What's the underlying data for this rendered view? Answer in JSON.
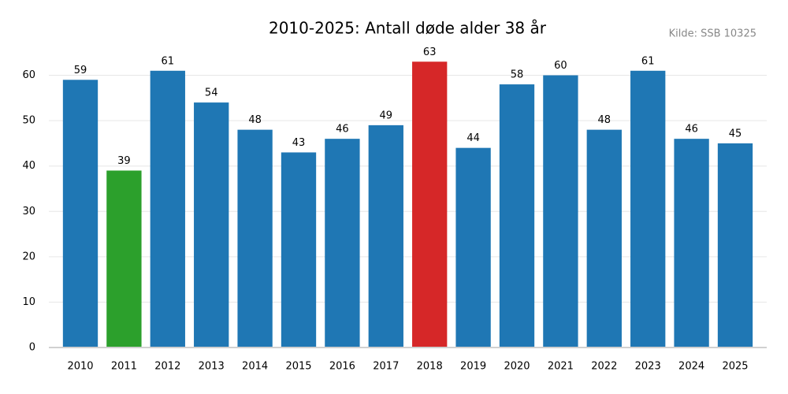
{
  "chart_data": {
    "type": "bar",
    "title": "2010-2025: Antall døde alder 38 år",
    "source": "Kilde: SSB 10325",
    "categories": [
      "2010",
      "2011",
      "2012",
      "2013",
      "2014",
      "2015",
      "2016",
      "2017",
      "2018",
      "2019",
      "2020",
      "2021",
      "2022",
      "2023",
      "2024",
      "2025"
    ],
    "values": [
      59,
      39,
      61,
      54,
      48,
      43,
      46,
      49,
      63,
      44,
      58,
      60,
      48,
      61,
      46,
      45
    ],
    "colors": [
      "#1f77b4",
      "#2ca02c",
      "#1f77b4",
      "#1f77b4",
      "#1f77b4",
      "#1f77b4",
      "#1f77b4",
      "#1f77b4",
      "#d62728",
      "#1f77b4",
      "#1f77b4",
      "#1f77b4",
      "#1f77b4",
      "#1f77b4",
      "#1f77b4",
      "#1f77b4"
    ],
    "ylim": [
      0,
      66
    ],
    "yticks": [
      0,
      10,
      20,
      30,
      40,
      50,
      60
    ],
    "grid": true
  }
}
